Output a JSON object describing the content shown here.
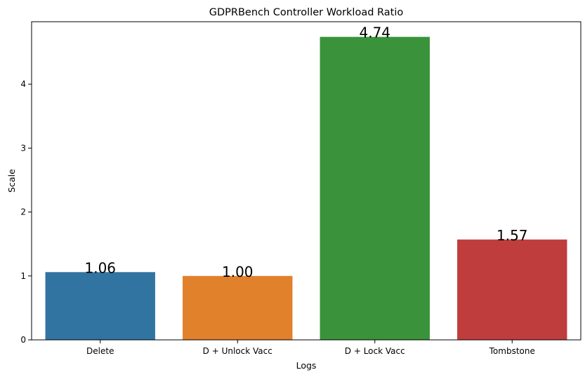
{
  "chart_data": {
    "type": "bar",
    "title": "GDPRBench Controller Workload Ratio",
    "xlabel": "Logs",
    "ylabel": "Scale",
    "categories": [
      "Delete",
      "D + Unlock Vacc",
      "D + Lock Vacc",
      "Tombstone"
    ],
    "values": [
      1.06,
      1.0,
      4.74,
      1.57
    ],
    "data_labels": [
      "1.06",
      "1.00",
      "4.74",
      "1.57"
    ],
    "colors": [
      "#3274a1",
      "#e1812c",
      "#3a923a",
      "#c03d3e"
    ],
    "ylim": [
      0,
      4.977
    ],
    "yticks": [
      0,
      1,
      2,
      3,
      4
    ],
    "ytick_labels": [
      "0",
      "1",
      "2",
      "3",
      "4"
    ],
    "grid": false,
    "legend": "none"
  }
}
